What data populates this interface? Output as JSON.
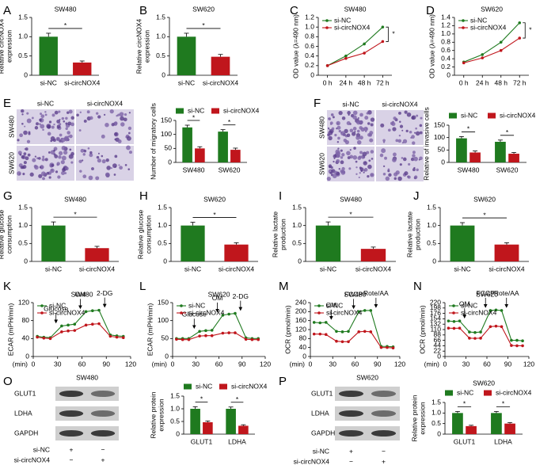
{
  "chart_data": [
    {
      "panel": "A",
      "type": "bar",
      "title": "SW480",
      "ylabel": [
        "Relative circNOX4",
        "expression"
      ],
      "categories": [
        "si-NC",
        "si-circNOX4"
      ],
      "values": [
        1.0,
        0.33
      ],
      "errors": [
        0.09,
        0.04
      ],
      "colors": [
        "#1f7a1f",
        "#c0161c"
      ],
      "ylim": [
        0,
        1.5
      ],
      "yticks": [
        0,
        0.5,
        {
          "value": 1,
          "label": "1.0"
        },
        1.5
      ],
      "significance": "*"
    },
    {
      "panel": "B",
      "type": "bar",
      "title": "SW620",
      "ylabel": [
        "Relative circNOX4",
        "expression"
      ],
      "categories": [
        "si-NC",
        "si-circNOX4"
      ],
      "values": [
        1.0,
        0.48
      ],
      "errors": [
        0.09,
        0.06
      ],
      "colors": [
        "#1f7a1f",
        "#c0161c"
      ],
      "ylim": [
        0,
        1.5
      ],
      "yticks": [
        0,
        0.5,
        {
          "value": 1,
          "label": "1.0"
        },
        1.5
      ],
      "significance": "*"
    },
    {
      "panel": "C",
      "type": "line",
      "title": "SW480",
      "ylabel": [
        "OD value (λ=490 nm)"
      ],
      "categories": [
        "0 h",
        "24 h",
        "48 h",
        "72 h"
      ],
      "series": [
        {
          "name": "si-NC",
          "color": "#1f7a1f",
          "values": [
            0.2,
            0.4,
            0.65,
            1.0
          ]
        },
        {
          "name": "si-circNOX4",
          "color": "#c0161c",
          "values": [
            0.2,
            0.35,
            0.46,
            0.7
          ]
        }
      ],
      "ylim": [
        0,
        1.2
      ],
      "yticks": [
        0,
        0.2,
        0.4,
        0.6,
        0.8,
        {
          "value": 1,
          "label": "1.0"
        },
        1.2
      ],
      "legend": "upper left",
      "significance": "*"
    },
    {
      "panel": "D",
      "type": "line",
      "title": "SW620",
      "ylabel": [
        "OD value (λ=490 nm)"
      ],
      "categories": [
        "0 h",
        "24 h",
        "48 h",
        "72 h"
      ],
      "series": [
        {
          "name": "si-NC",
          "color": "#1f7a1f",
          "values": [
            0.32,
            0.5,
            0.8,
            1.27
          ]
        },
        {
          "name": "si-circNOX4",
          "color": "#c0161c",
          "values": [
            0.3,
            0.42,
            0.6,
            0.9
          ]
        }
      ],
      "ylim": [
        0,
        1.4
      ],
      "yticks": [
        0,
        0.2,
        0.4,
        0.6,
        0.8,
        {
          "value": 1,
          "label": "1.0"
        },
        1.2,
        1.4
      ],
      "legend": "upper left",
      "significance": "*"
    },
    {
      "type": "bar",
      "ylabel": [
        "Number of migratory cells"
      ],
      "categories": [
        "SW480",
        "SW620"
      ],
      "series": [
        {
          "name": "si-NC",
          "color": "#1f7a1f",
          "values": [
            125,
            110
          ],
          "errors": [
            8,
            7
          ]
        },
        {
          "name": "si-circNOX4",
          "color": "#c0161c",
          "values": [
            50,
            45
          ],
          "errors": [
            6,
            6
          ]
        }
      ],
      "ylim": [
        0,
        150
      ],
      "yticks": [
        0,
        50,
        100,
        150
      ],
      "legend": "above",
      "significance": "*"
    },
    {
      "type": "bar",
      "ylabel": [
        "Relative of invasive cells"
      ],
      "categories": [
        "SW480",
        "SW620"
      ],
      "series": [
        {
          "name": "si-NC",
          "color": "#1f7a1f",
          "values": [
            97,
            83
          ],
          "errors": [
            7,
            7
          ]
        },
        {
          "name": "si-circNOX4",
          "color": "#c0161c",
          "values": [
            40,
            35
          ],
          "errors": [
            6,
            5
          ]
        }
      ],
      "ylim": [
        0,
        150
      ],
      "yticks": [
        0,
        50,
        100,
        150
      ],
      "legend": "above",
      "significance": "*"
    },
    {
      "panel": "G",
      "type": "bar",
      "title": "SW480",
      "ylabel": [
        "Relative glucose",
        "consumption"
      ],
      "categories": [
        "si-NC",
        "si-circNOX4"
      ],
      "values": [
        1.0,
        0.37
      ],
      "errors": [
        0.1,
        0.05
      ],
      "colors": [
        "#1f7a1f",
        "#c0161c"
      ],
      "ylim": [
        0,
        1.5
      ],
      "yticks": [
        0,
        0.5,
        {
          "value": 1,
          "label": "1.0"
        },
        1.5
      ],
      "significance": "*"
    },
    {
      "panel": "H",
      "type": "bar",
      "title": "SW620",
      "ylabel": [
        "Relative glucose",
        "consumption"
      ],
      "categories": [
        "si-NC",
        "si-circNOX4"
      ],
      "values": [
        1.0,
        0.47
      ],
      "errors": [
        0.09,
        0.05
      ],
      "colors": [
        "#1f7a1f",
        "#c0161c"
      ],
      "ylim": [
        0,
        1.5
      ],
      "yticks": [
        0,
        0.5,
        {
          "value": 1,
          "label": "1.0"
        },
        1.5
      ],
      "significance": "*"
    },
    {
      "panel": "I",
      "type": "bar",
      "title": "SW480",
      "ylabel": [
        "Relative lactate",
        "production"
      ],
      "categories": [
        "si-NC",
        "si-circNOX4"
      ],
      "values": [
        1.0,
        0.35
      ],
      "errors": [
        0.1,
        0.05
      ],
      "colors": [
        "#1f7a1f",
        "#c0161c"
      ],
      "ylim": [
        0,
        1.5
      ],
      "yticks": [
        0,
        0.5,
        {
          "value": 1,
          "label": "1.0"
        },
        1.5
      ],
      "significance": "*"
    },
    {
      "panel": "J",
      "type": "bar",
      "title": "SW620",
      "ylabel": [
        "Relative lactate",
        "production"
      ],
      "categories": [
        "si-NC",
        "si-circNOX4"
      ],
      "values": [
        1.0,
        0.47
      ],
      "errors": [
        0.08,
        0.05
      ],
      "colors": [
        "#1f7a1f",
        "#c0161c"
      ],
      "ylim": [
        0,
        1.5
      ],
      "yticks": [
        0,
        0.5,
        {
          "value": 1,
          "label": "1.0"
        },
        1.5
      ],
      "significance": "*"
    },
    {
      "panel": "K",
      "type": "line",
      "title": "SW480",
      "ylabel": [
        "ECAR (mPH/min)"
      ],
      "x": [
        5,
        13,
        21,
        35,
        43,
        51,
        65,
        73,
        81,
        95,
        103,
        111
      ],
      "xlim": [
        0,
        120
      ],
      "xticks": [
        0,
        30,
        60,
        90,
        120
      ],
      "xlabel": "(min)",
      "series": [
        {
          "name": "si-NC",
          "color": "#1f7a1f",
          "values": [
            45,
            43,
            42,
            68,
            70,
            72,
            100,
            102,
            103,
            48,
            46,
            45
          ]
        },
        {
          "name": "si-circNOX4",
          "color": "#c0161c",
          "values": [
            43,
            41,
            40,
            55,
            57,
            58,
            70,
            72,
            73,
            45,
            43,
            42
          ]
        }
      ],
      "ylim": [
        0,
        120
      ],
      "yticks": [
        0,
        40,
        80,
        120
      ],
      "legend": "upper left",
      "injections": [
        {
          "label": "Glucose",
          "x": 28
        },
        {
          "label": "OM",
          "x": 58
        },
        {
          "label": "2-DG",
          "x": 88
        }
      ]
    },
    {
      "panel": "L",
      "type": "line",
      "title": "SW620",
      "ylabel": [
        "ECAR (mPH/min)"
      ],
      "x": [
        5,
        13,
        21,
        35,
        43,
        51,
        65,
        73,
        81,
        95,
        103,
        111
      ],
      "xlim": [
        0,
        120
      ],
      "xticks": [
        0,
        30,
        60,
        90,
        120
      ],
      "xlabel": "(min)",
      "series": [
        {
          "name": "si-NC",
          "color": "#1f7a1f",
          "values": [
            50,
            50,
            50,
            70,
            72,
            73,
            115,
            118,
            120,
            52,
            50,
            50
          ]
        },
        {
          "name": "si-circNOX4",
          "color": "#c0161c",
          "values": [
            48,
            47,
            47,
            57,
            58,
            58,
            65,
            66,
            66,
            48,
            47,
            47
          ]
        }
      ],
      "ylim": [
        0,
        150
      ],
      "yticks": [
        0,
        50,
        100,
        150
      ],
      "legend": "upper left",
      "injections": [
        {
          "label": "Glucose",
          "x": 28
        },
        {
          "label": "OM",
          "x": 58
        },
        {
          "label": "2-DG",
          "x": 88
        }
      ]
    },
    {
      "panel": "M",
      "type": "line",
      "title": "SW480",
      "ylabel": [
        "OCR (pmol/min)"
      ],
      "x": [
        5,
        13,
        21,
        35,
        43,
        51,
        65,
        73,
        81,
        95,
        103,
        111
      ],
      "xlim": [
        0,
        120
      ],
      "xticks": [
        0,
        30,
        60,
        90,
        120
      ],
      "xlabel": "(min)",
      "series": [
        {
          "name": "si-NC",
          "color": "#1f7a1f",
          "values": [
            152,
            150,
            152,
            112,
            110,
            112,
            200,
            205,
            205,
            45,
            45,
            43
          ]
        },
        {
          "name": "si-circNOX4",
          "color": "#c0161c",
          "values": [
            100,
            100,
            98,
            68,
            66,
            66,
            110,
            112,
            110,
            40,
            40,
            38
          ]
        }
      ],
      "ylim": [
        0,
        240
      ],
      "yticks": [
        0,
        40,
        80,
        120,
        160,
        200,
        240
      ],
      "legend": "upper left",
      "injections": [
        {
          "label": "OM",
          "x": 28
        },
        {
          "label": "FCCP",
          "x": 58
        },
        {
          "label": "Rote/AA",
          "x": 88
        }
      ]
    },
    {
      "panel": "N",
      "type": "line",
      "title": "SW620",
      "ylabel": [
        "OCR (pmol/min)"
      ],
      "x": [
        5,
        13,
        21,
        35,
        43,
        51,
        65,
        73,
        81,
        95,
        103,
        111
      ],
      "xlim": [
        0,
        120
      ],
      "xticks": [
        0,
        30,
        60,
        90,
        120
      ],
      "xlabel": "(min)",
      "series": [
        {
          "name": "si-NC",
          "color": "#1f7a1f",
          "values": [
            145,
            143,
            145,
            100,
            98,
            100,
            188,
            190,
            188,
            66,
            66,
            64
          ]
        },
        {
          "name": "si-circNOX4",
          "color": "#c0161c",
          "values": [
            116,
            115,
            116,
            75,
            74,
            75,
            122,
            124,
            122,
            45,
            44,
            44
          ]
        }
      ],
      "ylim": [
        0,
        220
      ],
      "yticks": [
        0,
        22,
        44,
        66,
        88,
        110,
        132,
        154,
        176,
        198,
        220
      ],
      "legend": "upper left",
      "injections": [
        {
          "label": "OM",
          "x": 28
        },
        {
          "label": "FCCP",
          "x": 58
        },
        {
          "label": "Rote/AA",
          "x": 88
        }
      ]
    },
    {
      "type": "bar",
      "ylabel": [
        "Relative protein",
        "expression"
      ],
      "categories": [
        "GLUT1",
        "LDHA"
      ],
      "series": [
        {
          "name": "si-NC",
          "color": "#1f7a1f",
          "values": [
            1.0,
            1.0
          ],
          "errors": [
            0.08,
            0.07
          ]
        },
        {
          "name": "si-circNOX4",
          "color": "#c0161c",
          "values": [
            0.47,
            0.33
          ],
          "errors": [
            0.05,
            0.04
          ]
        }
      ],
      "ylim": [
        0,
        1.5
      ],
      "yticks": [
        0,
        0.5,
        {
          "value": 1,
          "label": "1.0"
        },
        1.5
      ],
      "legend": "above",
      "significance": "*"
    },
    {
      "type": "bar",
      "title": "SW620",
      "ylabel": [
        "Relative protein",
        "expression"
      ],
      "categories": [
        "GLUT1",
        "LDHA"
      ],
      "series": [
        {
          "name": "si-NC",
          "color": "#1f7a1f",
          "values": [
            1.0,
            1.0
          ],
          "errors": [
            0.07,
            0.07
          ]
        },
        {
          "name": "si-circNOX4",
          "color": "#c0161c",
          "values": [
            0.38,
            0.5
          ],
          "errors": [
            0.04,
            0.05
          ]
        }
      ],
      "ylim": [
        0,
        1.5
      ],
      "yticks": [
        0,
        0.5,
        {
          "value": 1,
          "label": "1.0"
        },
        1.5
      ],
      "legend": "above",
      "significance": "*"
    }
  ],
  "images": [
    {
      "panel": "E",
      "columns": [
        "si-NC",
        "si-circNOX4"
      ],
      "rows": [
        "SW480",
        "SW620"
      ]
    },
    {
      "panel": "F",
      "columns": [
        "si-NC",
        "si-circNOX4"
      ],
      "rows": [
        "SW480",
        "SW620"
      ]
    }
  ],
  "blots": [
    {
      "panel": "O",
      "title": "SW480",
      "proteins": [
        "GLUT1",
        "LDHA",
        "GAPDH"
      ],
      "conditions": [
        "si-NC",
        "si-circNOX4"
      ],
      "signs": [
        [
          "+",
          "−"
        ],
        [
          "−",
          "+"
        ]
      ]
    },
    {
      "panel": "P",
      "title": "SW620",
      "proteins": [
        "GLUT1",
        "LDHA",
        "GAPDH"
      ],
      "conditions": [
        "si-NC",
        "si-circNOX4"
      ],
      "signs": [
        [
          "+",
          "−"
        ],
        [
          "−",
          "+"
        ]
      ]
    }
  ]
}
